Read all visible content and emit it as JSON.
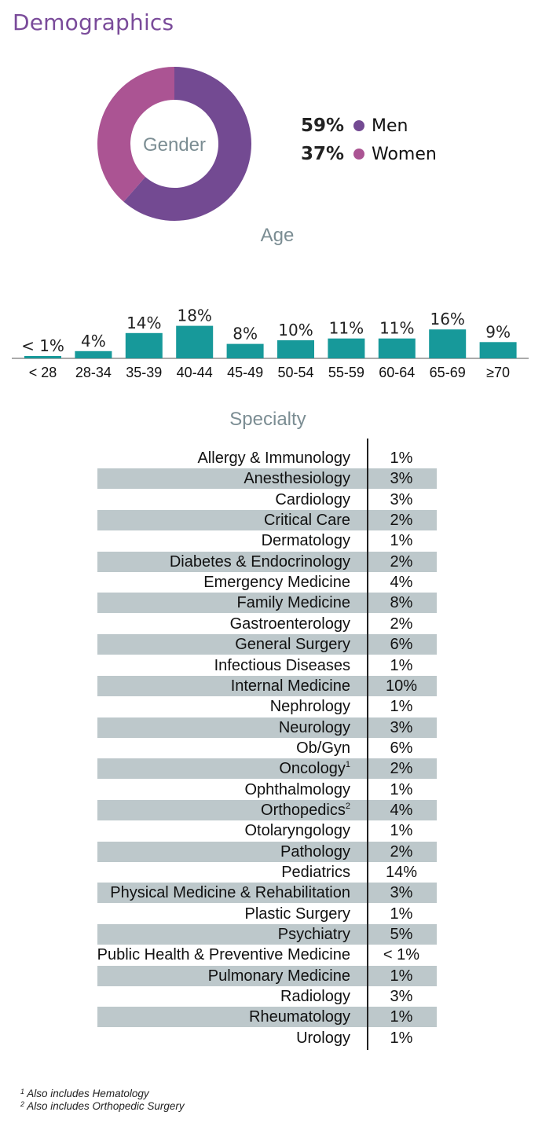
{
  "page_title": "Demographics",
  "colors": {
    "men": "#734a92",
    "women": "#ab5493",
    "bars": "#17999a",
    "band": "#bdc8cb",
    "title": "#7a4b9a"
  },
  "chart_data": [
    {
      "type": "pie",
      "title": "Gender",
      "center_label": "Gender",
      "categories": [
        "Men",
        "Women"
      ],
      "values": [
        59,
        37
      ],
      "value_labels": [
        "59%",
        "37%"
      ]
    },
    {
      "type": "bar",
      "title": "Age",
      "categories": [
        "< 28",
        "28-34",
        "35-39",
        "40-44",
        "45-49",
        "50-54",
        "55-59",
        "60-64",
        "65-69",
        "≥70"
      ],
      "values": [
        0.5,
        4,
        14,
        18,
        8,
        10,
        11,
        11,
        16,
        9
      ],
      "data_labels": [
        "< 1%",
        "4%",
        "14%",
        "18%",
        "8%",
        "10%",
        "11%",
        "11%",
        "16%",
        "9%"
      ],
      "xlabel": "",
      "ylabel": "",
      "ylim": [
        0,
        20
      ]
    },
    {
      "type": "table",
      "title": "Specialty",
      "rows": [
        {
          "name": "Allergy & Immunology",
          "pct": "1%"
        },
        {
          "name": "Anesthesiology",
          "pct": "3%"
        },
        {
          "name": "Cardiology",
          "pct": "3%"
        },
        {
          "name": "Critical Care",
          "pct": "2%"
        },
        {
          "name": "Dermatology",
          "pct": "1%"
        },
        {
          "name": "Diabetes & Endocrinology",
          "pct": "2%"
        },
        {
          "name": "Emergency Medicine",
          "pct": "4%"
        },
        {
          "name": "Family Medicine",
          "pct": "8%"
        },
        {
          "name": "Gastroenterology",
          "pct": "2%"
        },
        {
          "name": "General Surgery",
          "pct": "6%"
        },
        {
          "name": "Infectious Diseases",
          "pct": "1%"
        },
        {
          "name": "Internal Medicine",
          "pct": "10%"
        },
        {
          "name": "Nephrology",
          "pct": "1%"
        },
        {
          "name": "Neurology",
          "pct": "3%"
        },
        {
          "name": "Ob/Gyn",
          "pct": "6%"
        },
        {
          "name": "Oncology",
          "sup": "1",
          "pct": "2%"
        },
        {
          "name": "Ophthalmology",
          "pct": "1%"
        },
        {
          "name": "Orthopedics",
          "sup": "2",
          "pct": "4%"
        },
        {
          "name": "Otolaryngology",
          "pct": "1%"
        },
        {
          "name": "Pathology",
          "pct": "2%"
        },
        {
          "name": "Pediatrics",
          "pct": "14%"
        },
        {
          "name": "Physical Medicine & Rehabilitation",
          "pct": "3%"
        },
        {
          "name": "Plastic Surgery",
          "pct": "1%"
        },
        {
          "name": "Psychiatry",
          "pct": "5%"
        },
        {
          "name": "Public Health & Preventive Medicine",
          "pct": "< 1%"
        },
        {
          "name": "Pulmonary Medicine",
          "pct": "1%"
        },
        {
          "name": "Radiology",
          "pct": "3%"
        },
        {
          "name": "Rheumatology",
          "pct": "1%"
        },
        {
          "name": "Urology",
          "pct": "1%"
        }
      ]
    }
  ],
  "footnotes": [
    {
      "mark": "1",
      "text": "Also includes Hematology"
    },
    {
      "mark": "2",
      "text": "Also includes Orthopedic Surgery"
    }
  ]
}
